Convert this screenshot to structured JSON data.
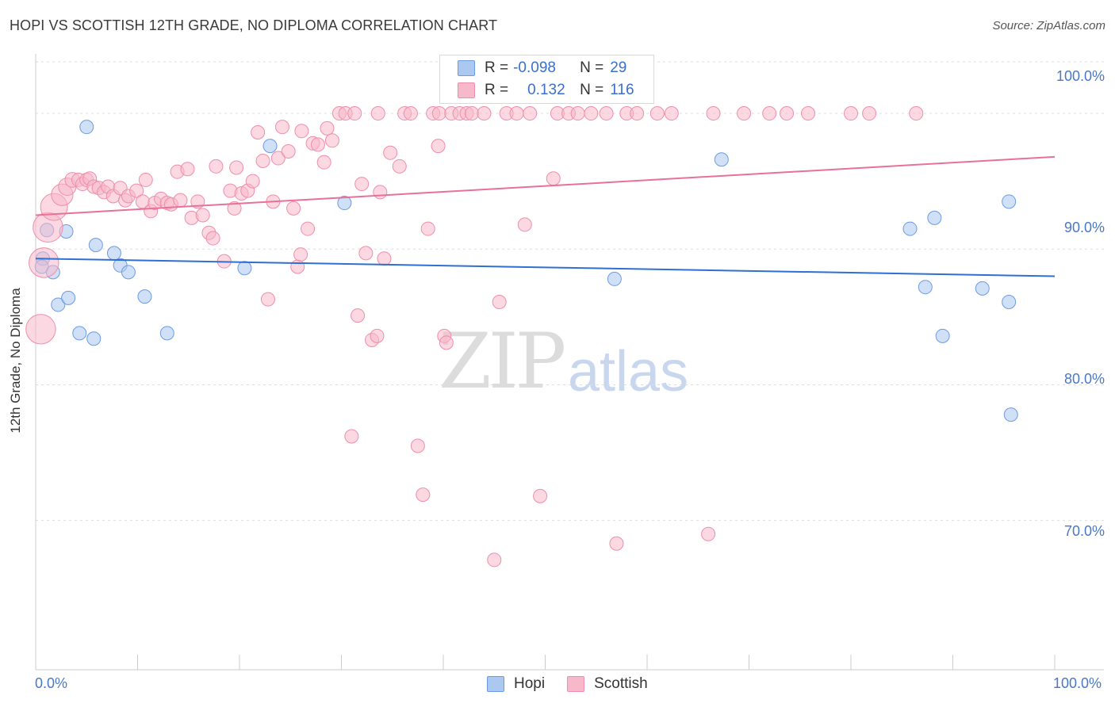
{
  "header": {
    "title": "HOPI VS SCOTTISH 12TH GRADE, NO DIPLOMA CORRELATION CHART",
    "source": "Source: ZipAtlas.com"
  },
  "watermark": {
    "zip": "ZIP",
    "atlas": "atlas"
  },
  "colors": {
    "hopi_fill": "#aac8f0",
    "hopi_stroke": "#6d9be0",
    "hopi_line": "#2f6fd0",
    "scottish_fill": "#f7b8cb",
    "scottish_stroke": "#ee8eaa",
    "scottish_line": "#e8719a",
    "tick_text": "#4a77c8",
    "grid": "#dddddd"
  },
  "legend": {
    "rows": [
      {
        "r_label": "R =",
        "r_value": "-0.098",
        "n_label": "N =",
        "n_value": "29"
      },
      {
        "r_label": "R =",
        "r_value": "0.132",
        "n_label": "N =",
        "n_value": "116"
      }
    ]
  },
  "bottom_legend": {
    "hopi": "Hopi",
    "scottish": "Scottish"
  },
  "chart_data": {
    "type": "scatter",
    "title": "HOPI VS SCOTTISH 12TH GRADE, NO DIPLOMA CORRELATION CHART",
    "xlabel": "",
    "ylabel": "12th Grade, No Diploma",
    "xlim": [
      0,
      100
    ],
    "ylim": [
      59,
      104.5
    ],
    "x_tick_labels": [
      "0.0%",
      "100.0%"
    ],
    "y_ticks": [
      70,
      80,
      90,
      100
    ],
    "y_tick_labels": [
      "70.0%",
      "80.0%",
      "90.0%",
      "100.0%"
    ],
    "grid": true,
    "legend_position": "bottom-center",
    "series": [
      {
        "name": "Hopi",
        "r": -0.098,
        "n": 29,
        "trend": {
          "x": [
            0,
            100
          ],
          "y": [
            89.3,
            88.0
          ]
        },
        "points": [
          [
            0.7,
            89.3,
            1
          ],
          [
            0.6,
            88.7,
            1
          ],
          [
            1.1,
            91.4,
            1
          ],
          [
            1.7,
            88.3,
            1
          ],
          [
            2.2,
            85.9,
            1
          ],
          [
            3.0,
            91.3,
            1
          ],
          [
            3.2,
            86.4,
            1
          ],
          [
            4.3,
            83.8,
            1
          ],
          [
            5.0,
            99.0,
            1
          ],
          [
            5.7,
            83.4,
            1
          ],
          [
            5.9,
            90.3,
            1
          ],
          [
            7.7,
            89.7,
            1
          ],
          [
            8.3,
            88.8,
            1
          ],
          [
            9.1,
            88.3,
            1
          ],
          [
            10.7,
            86.5,
            1
          ],
          [
            12.9,
            83.8,
            1
          ],
          [
            20.5,
            88.6,
            1
          ],
          [
            23.0,
            97.6,
            1
          ],
          [
            30.3,
            93.4,
            1
          ],
          [
            56.8,
            87.8,
            1
          ],
          [
            67.3,
            96.6,
            1
          ],
          [
            85.8,
            91.5,
            1
          ],
          [
            87.3,
            87.2,
            1
          ],
          [
            88.2,
            92.3,
            1
          ],
          [
            89.0,
            83.6,
            1
          ],
          [
            92.9,
            87.1,
            1
          ],
          [
            95.5,
            93.5,
            1
          ],
          [
            95.5,
            86.1,
            1
          ],
          [
            95.7,
            77.8,
            1
          ]
        ]
      },
      {
        "name": "Scottish",
        "r": 0.132,
        "n": 116,
        "trend": {
          "x": [
            0,
            100
          ],
          "y": [
            92.5,
            96.8
          ]
        },
        "points": [
          [
            0.5,
            84.1,
            2.2
          ],
          [
            0.8,
            89.0,
            2.2
          ],
          [
            1.2,
            91.6,
            2.2
          ],
          [
            1.8,
            93.1,
            2.0
          ],
          [
            2.6,
            94.0,
            1.6
          ],
          [
            3.1,
            94.6,
            1.3
          ],
          [
            3.6,
            95.1,
            1.1
          ],
          [
            4.2,
            95.1,
            1
          ],
          [
            4.6,
            94.8,
            1
          ],
          [
            5.0,
            95.1,
            1
          ],
          [
            5.3,
            95.2,
            1
          ],
          [
            5.7,
            94.6,
            1
          ],
          [
            6.2,
            94.5,
            1
          ],
          [
            6.7,
            94.2,
            1
          ],
          [
            7.1,
            94.6,
            1
          ],
          [
            7.6,
            93.9,
            1
          ],
          [
            8.3,
            94.5,
            1
          ],
          [
            8.8,
            93.6,
            1
          ],
          [
            9.1,
            93.9,
            1
          ],
          [
            9.9,
            94.3,
            1
          ],
          [
            10.5,
            93.5,
            1
          ],
          [
            10.8,
            95.1,
            1
          ],
          [
            11.3,
            92.8,
            1
          ],
          [
            11.7,
            93.4,
            1
          ],
          [
            12.3,
            93.7,
            1
          ],
          [
            12.9,
            93.4,
            1
          ],
          [
            13.3,
            93.3,
            1
          ],
          [
            13.9,
            95.7,
            1
          ],
          [
            14.2,
            93.6,
            1
          ],
          [
            14.9,
            95.9,
            1
          ],
          [
            15.3,
            92.3,
            1
          ],
          [
            15.9,
            93.5,
            1
          ],
          [
            16.4,
            92.5,
            1
          ],
          [
            17.0,
            91.2,
            1
          ],
          [
            17.4,
            90.8,
            1
          ],
          [
            17.7,
            96.1,
            1
          ],
          [
            18.5,
            89.1,
            1
          ],
          [
            19.1,
            94.3,
            1
          ],
          [
            19.5,
            93.0,
            1
          ],
          [
            19.7,
            96.0,
            1
          ],
          [
            20.2,
            94.1,
            1
          ],
          [
            20.8,
            94.3,
            1
          ],
          [
            21.3,
            95.0,
            1
          ],
          [
            21.8,
            98.6,
            1
          ],
          [
            22.3,
            96.5,
            1
          ],
          [
            22.8,
            86.3,
            1
          ],
          [
            23.3,
            93.5,
            1
          ],
          [
            23.8,
            96.7,
            1
          ],
          [
            24.2,
            99.0,
            1
          ],
          [
            24.8,
            97.2,
            1
          ],
          [
            25.3,
            93.0,
            1
          ],
          [
            25.7,
            88.7,
            1
          ],
          [
            26.1,
            98.7,
            1
          ],
          [
            26.7,
            91.5,
            1
          ],
          [
            27.2,
            97.8,
            1
          ],
          [
            27.7,
            97.7,
            1
          ],
          [
            28.3,
            96.4,
            1
          ],
          [
            28.6,
            98.9,
            1
          ],
          [
            29.1,
            98.0,
            1
          ],
          [
            29.8,
            100.0,
            1
          ],
          [
            30.4,
            100.0,
            1
          ],
          [
            31.3,
            100.0,
            1
          ],
          [
            31.6,
            85.1,
            1
          ],
          [
            32.0,
            94.8,
            1
          ],
          [
            32.4,
            89.7,
            1
          ],
          [
            33.0,
            83.3,
            1
          ],
          [
            33.6,
            100.0,
            1
          ],
          [
            33.8,
            94.2,
            1
          ],
          [
            34.2,
            89.3,
            1
          ],
          [
            34.8,
            97.1,
            1
          ],
          [
            35.7,
            96.1,
            1
          ],
          [
            36.2,
            100.0,
            1
          ],
          [
            36.8,
            100.0,
            1
          ],
          [
            37.5,
            75.5,
            1
          ],
          [
            38.0,
            71.9,
            1
          ],
          [
            38.5,
            91.5,
            1
          ],
          [
            39.0,
            100.0,
            1
          ],
          [
            39.6,
            100.0,
            1
          ],
          [
            40.1,
            83.6,
            1
          ],
          [
            40.3,
            83.1,
            1
          ],
          [
            40.8,
            100.0,
            1
          ],
          [
            41.6,
            100.0,
            1
          ],
          [
            42.3,
            100.0,
            1
          ],
          [
            42.8,
            100.0,
            1
          ],
          [
            44.0,
            100.0,
            1
          ],
          [
            45.0,
            67.1,
            1
          ],
          [
            45.5,
            86.1,
            1
          ],
          [
            46.2,
            100.0,
            1
          ],
          [
            47.2,
            100.0,
            1
          ],
          [
            48.0,
            91.8,
            1
          ],
          [
            48.5,
            100.0,
            1
          ],
          [
            49.5,
            71.8,
            1
          ],
          [
            50.8,
            95.2,
            1
          ],
          [
            51.2,
            100.0,
            1
          ],
          [
            52.3,
            100.0,
            1
          ],
          [
            53.2,
            100.0,
            1
          ],
          [
            54.5,
            100.0,
            1
          ],
          [
            56.0,
            100.0,
            1
          ],
          [
            58.0,
            100.0,
            1
          ],
          [
            59.0,
            100.0,
            1
          ],
          [
            61.0,
            100.0,
            1
          ],
          [
            62.4,
            100.0,
            1
          ],
          [
            66.5,
            100.0,
            1
          ],
          [
            69.5,
            100.0,
            1
          ],
          [
            72.0,
            100.0,
            1
          ],
          [
            73.7,
            100.0,
            1
          ],
          [
            75.8,
            100.0,
            1
          ],
          [
            80.0,
            100.0,
            1
          ],
          [
            81.8,
            100.0,
            1
          ],
          [
            86.4,
            100.0,
            1
          ],
          [
            26.0,
            89.6,
            1
          ],
          [
            31.0,
            76.2,
            1
          ],
          [
            57.0,
            68.3,
            1
          ],
          [
            66.0,
            69.0,
            1
          ],
          [
            33.5,
            83.6,
            1
          ],
          [
            39.5,
            97.6,
            1
          ]
        ]
      }
    ]
  }
}
